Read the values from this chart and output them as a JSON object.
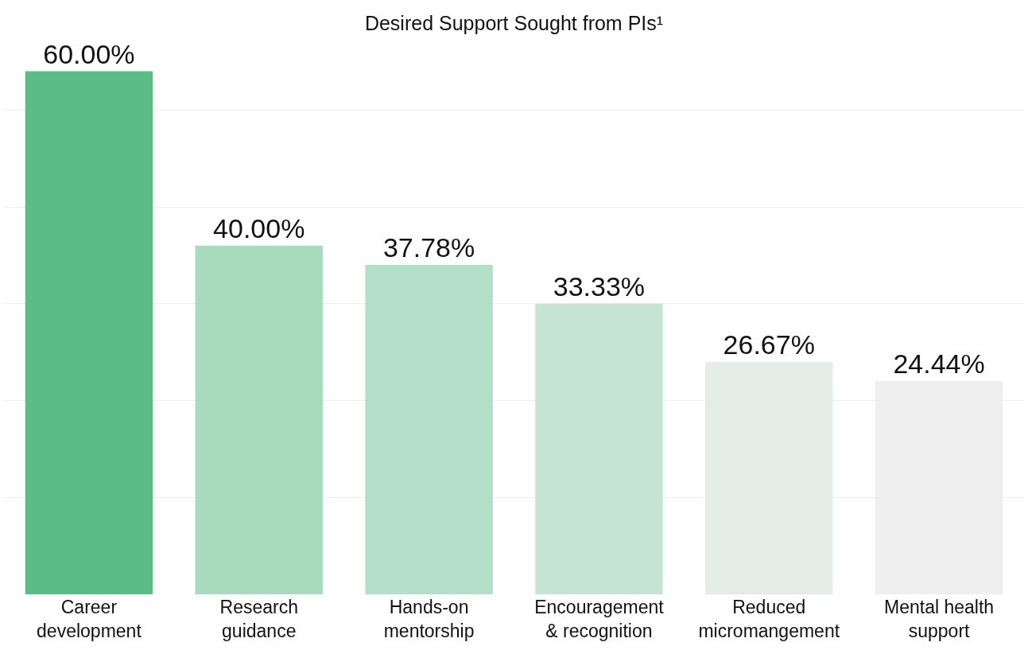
{
  "chart_data": {
    "type": "bar",
    "title": "Desired Support Sought from PIs¹",
    "categories": [
      "Career\ndevelopment",
      "Research\nguidance",
      "Hands-on\nmentorship",
      "Encouragement\n& recognition",
      "Reduced\nmicromangement",
      "Mental health\nsupport"
    ],
    "values": [
      60.0,
      40.0,
      37.78,
      33.33,
      26.67,
      24.44
    ],
    "value_labels": [
      "60.00%",
      "40.00%",
      "37.78%",
      "33.33%",
      "26.67%",
      "24.44%"
    ],
    "colors": [
      "#5bbc85",
      "#a8dbbc",
      "#b3dec7",
      "#c6e4d4",
      "#e3ece6",
      "#efefef"
    ],
    "yticks": [
      {
        "value": 11.11,
        "label": null
      },
      {
        "value": 22.22,
        "label": null
      },
      {
        "value": 33.33,
        "label": null
      },
      {
        "value": 44.44,
        "label": null
      },
      {
        "value": 55.56,
        "label": null
      }
    ],
    "grid": "y",
    "tick_labels": "x",
    "legend": false
  }
}
